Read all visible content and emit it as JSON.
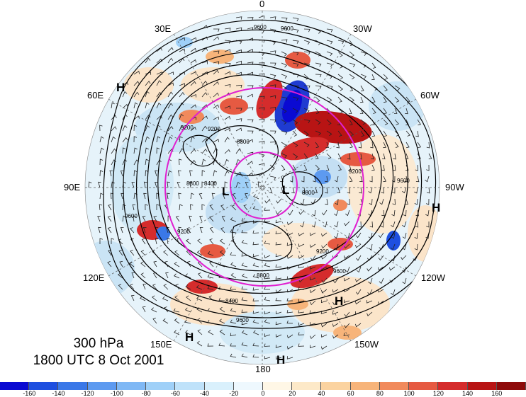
{
  "title": {
    "level": "300 hPa",
    "time": "1800 UTC 8 Oct 2001"
  },
  "longitude_labels": {
    "north": "0",
    "nne": "30W",
    "ene": "60W",
    "east": "90W",
    "ese": "120W",
    "sse": "150W",
    "south": "180",
    "ssw": "150E",
    "wsw": "120E",
    "west": "90E",
    "wnw": "60E",
    "nnw": "30E"
  },
  "pressure_centers": [
    "H",
    "H",
    "H",
    "H",
    "H",
    "L",
    "L"
  ],
  "contour_labels": [
    "9600",
    "9600",
    "9200",
    "8800",
    "8400",
    "9600",
    "9200",
    "8800",
    "9200",
    "9600",
    "8800",
    "8400",
    "9200",
    "9600",
    "9600",
    "8800",
    "9200"
  ],
  "colorbar": {
    "ticks": [
      "-160",
      "-140",
      "-120",
      "-100",
      "-80",
      "-60",
      "-40",
      "-20",
      "0",
      "20",
      "40",
      "60",
      "80",
      "100",
      "120",
      "140",
      "160"
    ],
    "colors": [
      "#0a0ad2",
      "#1e4fe0",
      "#3a78e8",
      "#5d9af0",
      "#7fb8f5",
      "#9fd0f8",
      "#bfe2fa",
      "#d9f0fc",
      "#eef8fe",
      "#fff7e6",
      "#fde9c8",
      "#fbd3a0",
      "#f7b47a",
      "#f18a5c",
      "#e65a42",
      "#d52c2c",
      "#b81414",
      "#8e0a0a"
    ]
  }
}
